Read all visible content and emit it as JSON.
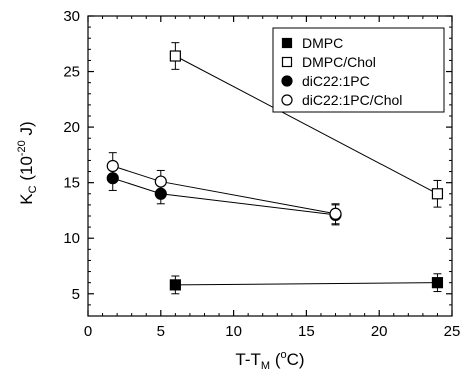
{
  "chart_data": {
    "type": "scatter",
    "title": "",
    "xlabel": {
      "main": "T-T",
      "sub": "M",
      "rest_open": " (",
      "sup": "o",
      "rest_close": "C)"
    },
    "ylabel": {
      "main": "K",
      "sub": "C",
      "rest_open": " (10",
      "sup": "-20",
      "rest_close": " J)"
    },
    "xlim": [
      0,
      25
    ],
    "ylim": [
      3,
      30
    ],
    "xticks": [
      0,
      5,
      10,
      15,
      20,
      25
    ],
    "yticks": [
      5,
      10,
      15,
      20,
      25,
      30
    ],
    "grid": false,
    "legend_position": "top-right",
    "series": [
      {
        "name": "DMPC",
        "marker": "square",
        "filled": true,
        "connected": true,
        "points": [
          {
            "x": 6,
            "y": 5.8,
            "err": 0.8
          },
          {
            "x": 24,
            "y": 6.0,
            "err": 0.8
          }
        ]
      },
      {
        "name": "DMPC/Chol",
        "marker": "square",
        "filled": false,
        "connected": true,
        "points": [
          {
            "x": 6,
            "y": 26.4,
            "err": 1.2
          },
          {
            "x": 24,
            "y": 14.0,
            "err": 1.2
          }
        ]
      },
      {
        "name": "diC22:1PC",
        "marker": "circle",
        "filled": true,
        "connected": true,
        "points": [
          {
            "x": 1.7,
            "y": 15.4,
            "err": 1.1
          },
          {
            "x": 5,
            "y": 14.0,
            "err": 0.9
          },
          {
            "x": 17,
            "y": 12.1,
            "err": 0.9
          }
        ]
      },
      {
        "name": "diC22:1PC/Chol",
        "marker": "circle",
        "filled": false,
        "connected": true,
        "points": [
          {
            "x": 1.7,
            "y": 16.5,
            "err": 1.2
          },
          {
            "x": 5,
            "y": 15.1,
            "err": 1.0
          },
          {
            "x": 17,
            "y": 12.2,
            "err": 0.9
          }
        ]
      }
    ]
  }
}
